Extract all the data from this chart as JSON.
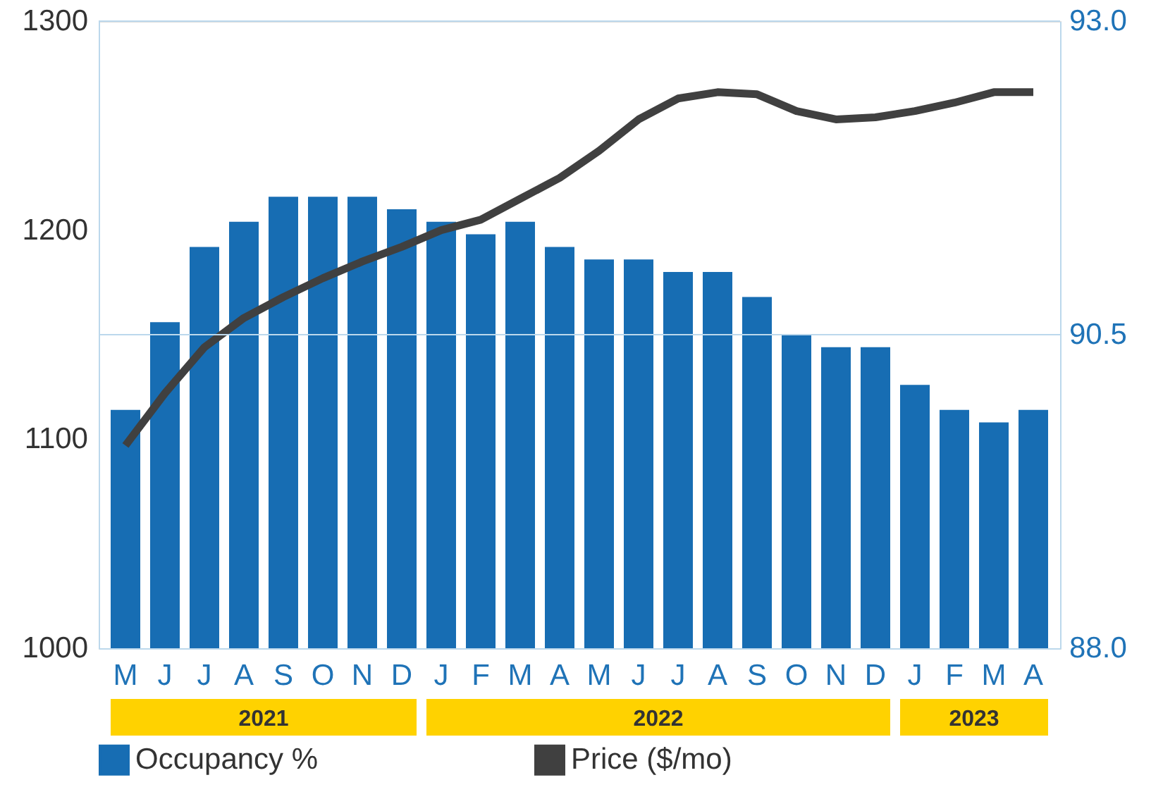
{
  "chart_data": {
    "type": "bar",
    "categories": [
      "M",
      "J",
      "J",
      "A",
      "S",
      "O",
      "N",
      "D",
      "J",
      "F",
      "M",
      "A",
      "M",
      "J",
      "J",
      "A",
      "S",
      "O",
      "N",
      "D",
      "J",
      "F",
      "M",
      "A"
    ],
    "series": [
      {
        "name": "Occupancy %",
        "axis": "y2",
        "color": "#176db3",
        "values": [
          89.9,
          90.6,
          91.2,
          91.4,
          91.6,
          91.6,
          91.6,
          91.5,
          91.4,
          91.3,
          91.4,
          91.2,
          91.1,
          91.1,
          91.0,
          91.0,
          90.8,
          90.5,
          90.4,
          90.4,
          90.1,
          89.9,
          89.8,
          89.9
        ]
      },
      {
        "name": "Price ($/mo)",
        "type": "line",
        "color": "#404040",
        "values": [
          1097,
          1122,
          1144,
          1158,
          1168,
          1177,
          1185,
          1192,
          1200,
          1205,
          1215,
          1225,
          1238,
          1253,
          1263,
          1266,
          1265,
          1257,
          1253,
          1254,
          1257,
          1261,
          1266,
          1266
        ]
      }
    ],
    "ylim": [
      1000,
      1300
    ],
    "yticks": [
      1000,
      1100,
      1200,
      1300
    ],
    "y2lim": [
      88.0,
      93.0
    ],
    "y2ticks": [
      {
        "value": 88,
        "label": "88.0"
      },
      {
        "value": 90.5,
        "label": "90.5"
      },
      {
        "value": 93,
        "label": "93.0"
      }
    ],
    "ref_lines": [
      {
        "axis": "y2",
        "value": 90.5,
        "color": "#bcd8ec"
      },
      {
        "axis": "y2",
        "value": 93.0,
        "color": "#bcd8ec"
      }
    ],
    "legend": "bottom",
    "line_style": "solid",
    "marker": "none",
    "annotations": [
      "2021",
      "2022",
      "2023"
    ]
  }
}
